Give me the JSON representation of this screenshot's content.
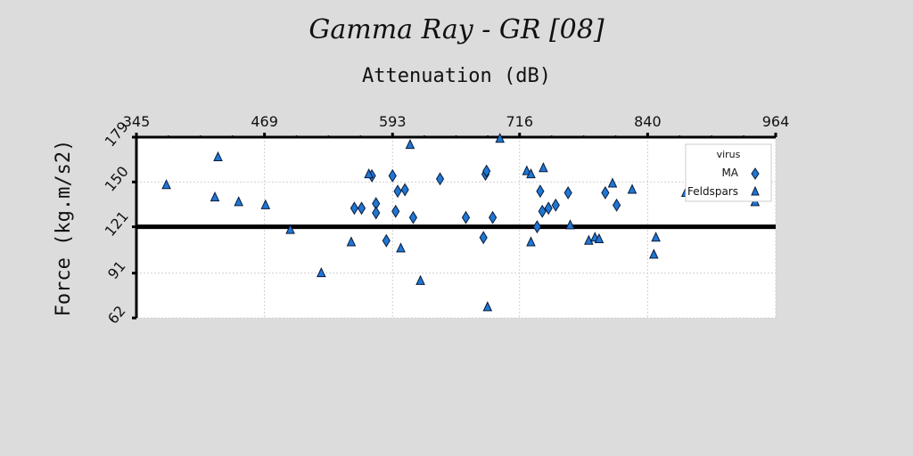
{
  "chart_data": {
    "type": "scatter",
    "title": "Gamma Ray - GR [08]",
    "xlabel": "Attenuation (dB)",
    "ylabel": "Force (kg.m/s2)",
    "xlim": [
      345,
      964
    ],
    "ylim": [
      62,
      179
    ],
    "x_ticks": [
      "345",
      "469",
      "593",
      "716",
      "840",
      "964"
    ],
    "y_ticks": [
      "62",
      "91",
      "121",
      "150",
      "179"
    ],
    "x_axis_position": "top",
    "grid": true,
    "reference_line_y": 121,
    "legend": {
      "title": "virus",
      "position": "top-right",
      "entries": [
        "MA",
        "Feldspars"
      ]
    },
    "colors": {
      "marker_fill": "#1f77d4",
      "marker_edge": "#0a1a3a",
      "background": "#dcdcdc",
      "plot_bg": "#ffffff"
    },
    "series": [
      {
        "name": "MA",
        "marker": "diamond",
        "points": [
          [
            556,
            133
          ],
          [
            563,
            133
          ],
          [
            573,
            154
          ],
          [
            577,
            136
          ],
          [
            577,
            130
          ],
          [
            587,
            112
          ],
          [
            593,
            154
          ],
          [
            596,
            131
          ],
          [
            598,
            144
          ],
          [
            605,
            145
          ],
          [
            613,
            127
          ],
          [
            639,
            152
          ],
          [
            664,
            127
          ],
          [
            681,
            114
          ],
          [
            683,
            155
          ],
          [
            684,
            157
          ],
          [
            690,
            127
          ],
          [
            733,
            121
          ],
          [
            736,
            144
          ],
          [
            738,
            131
          ],
          [
            744,
            133
          ],
          [
            751,
            135
          ],
          [
            763,
            143
          ],
          [
            799,
            143
          ],
          [
            810,
            135
          ]
        ]
      },
      {
        "name": "Feldspars",
        "marker": "triangle",
        "points": [
          [
            374,
            148
          ],
          [
            424,
            166
          ],
          [
            421,
            140
          ],
          [
            444,
            137
          ],
          [
            470,
            135
          ],
          [
            494,
            119
          ],
          [
            524,
            91
          ],
          [
            553,
            111
          ],
          [
            570,
            155
          ],
          [
            601,
            107
          ],
          [
            610,
            174
          ],
          [
            620,
            86
          ],
          [
            685,
            69
          ],
          [
            697,
            178
          ],
          [
            723,
            157
          ],
          [
            727,
            155
          ],
          [
            727,
            111
          ],
          [
            739,
            159
          ],
          [
            765,
            122
          ],
          [
            783,
            112
          ],
          [
            789,
            114
          ],
          [
            793,
            113
          ],
          [
            806,
            149
          ],
          [
            825,
            145
          ],
          [
            846,
            103
          ],
          [
            848,
            114
          ],
          [
            877,
            143
          ],
          [
            944,
            137
          ]
        ]
      }
    ]
  }
}
